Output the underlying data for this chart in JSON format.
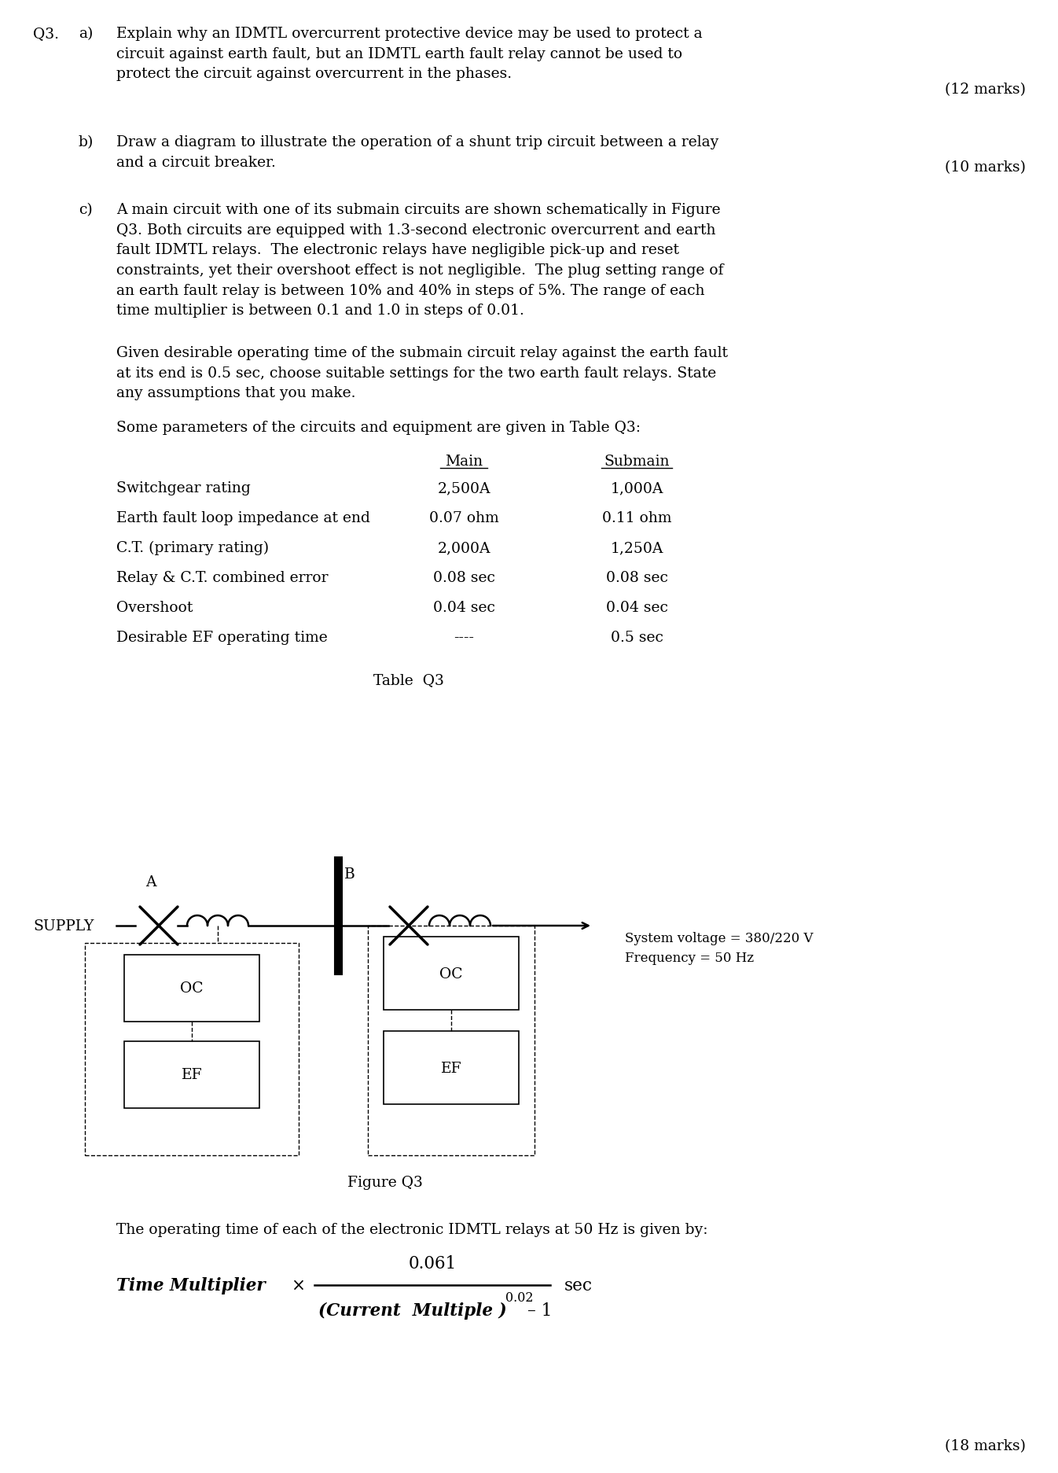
{
  "background_color": "#ffffff",
  "q3_label": "Q3.",
  "part_a_label": "a)",
  "part_a_text": "Explain why an IDMTL overcurrent protective device may be used to protect a\ncircuit against earth fault, but an IDMTL earth fault relay cannot be used to\nprotect the circuit against overcurrent in the phases.",
  "part_a_marks": "(12 marks)",
  "part_b_label": "b)",
  "part_b_text": "Draw a diagram to illustrate the operation of a shunt trip circuit between a relay\nand a circuit breaker.",
  "part_b_marks": "(10 marks)",
  "part_c_label": "c)",
  "part_c_text1": "A main circuit with one of its submain circuits are shown schematically in Figure\nQ3. Both circuits are equipped with 1.3-second electronic overcurrent and earth\nfault IDMTL relays.  The electronic relays have negligible pick-up and reset\nconstraints, yet their overshoot effect is not negligible.  The plug setting range of\nan earth fault relay is between 10% and 40% in steps of 5%. The range of each\ntime multiplier is between 0.1 and 1.0 in steps of 0.01.",
  "part_c_text2": "Given desirable operating time of the submain circuit relay against the earth fault\nat its end is 0.5 sec, choose suitable settings for the two earth fault relays. State\nany assumptions that you make.",
  "part_c_text3": "Some parameters of the circuits and equipment are given in Table Q3:",
  "table_header_main": "Main",
  "table_header_submain": "Submain",
  "table_rows": [
    [
      "Switchgear rating",
      "2,500A",
      "1,000A"
    ],
    [
      "Earth fault loop impedance at end",
      "0.07 ohm",
      "0.11 ohm"
    ],
    [
      "C.T. (primary rating)",
      "2,000A",
      "1,250A"
    ],
    [
      "Relay & C.T. combined error",
      "0.08 sec",
      "0.08 sec"
    ],
    [
      "Overshoot",
      "0.04 sec",
      "0.04 sec"
    ],
    [
      "Desirable EF operating time",
      "----",
      "0.5 sec"
    ]
  ],
  "table_caption": "Table  Q3",
  "figure_label_A": "A",
  "figure_label_B": "B",
  "figure_supply": "SUPPLY",
  "figure_oc1": "OC",
  "figure_ef1": "EF",
  "figure_oc2": "OC",
  "figure_ef2": "EF",
  "figure_sys_voltage": "System voltage = 380/220 V",
  "figure_freq": "Frequency = 50 Hz",
  "figure_caption": "Figure Q3",
  "formula_text": "The operating time of each of the electronic IDMTL relays at 50 Hz is given by:",
  "formula_numerator": "0.061",
  "formula_denominator": "(Current  Multiple )",
  "formula_exponent": "0.02",
  "formula_minus": "– 1",
  "formula_prefix": "Time Multiplier",
  "formula_times": "×",
  "formula_suffix": "sec",
  "final_marks": "(18 marks)",
  "font_size_body": 13.5,
  "font_size_small": 12,
  "text_color": "#000000"
}
